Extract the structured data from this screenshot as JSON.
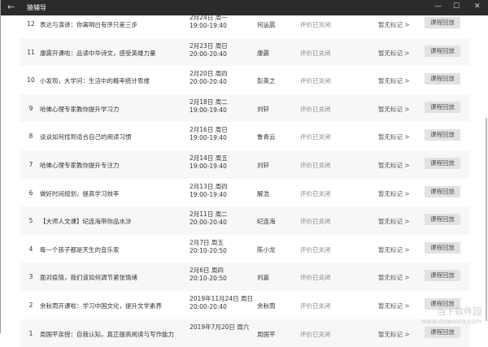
{
  "window": {
    "title": "猿辅导",
    "back_icon": "arrow-left-icon",
    "minimize": "—",
    "maximize": "☐",
    "close": "✕"
  },
  "lessons": [
    {
      "num": "12",
      "title": "表达与演讲：你离明白有序只差三步",
      "date": "2月24日 周一",
      "time": "19:00-19:40",
      "teacher": "何运晨",
      "status": "评价已关闭",
      "mark": "暂无标记 >",
      "button": "课程回放"
    },
    {
      "num": "11",
      "title": "康震开课啦：品读中华诗文，感受英雄力量",
      "date": "2月23日 周日",
      "time": "20:00-20:40",
      "teacher": "康震",
      "status": "评价已关闭",
      "mark": "暂无标记 >",
      "button": "课程回放"
    },
    {
      "num": "10",
      "title": "小发现，大学问：生活中的概率统计思维",
      "date": "2月20日 周四",
      "time": "20:00-20:40",
      "teacher": "彭英之",
      "status": "评价已关闭",
      "mark": "暂无标记 >",
      "button": "课程回放"
    },
    {
      "num": "9",
      "title": "哈佛心理专家教你提升学习力",
      "date": "2月18日 周二",
      "time": "19:00-19:40",
      "teacher": "刘轩",
      "status": "评价已关闭",
      "mark": "暂无标记 >",
      "button": "课程回放"
    },
    {
      "num": "8",
      "title": "谈谈如何找到适合自己的阅读习惯",
      "date": "2月16日 周日",
      "time": "19:00-19:40",
      "teacher": "鲁青云",
      "status": "评价已关闭",
      "mark": "暂无标记 >",
      "button": "课程回放"
    },
    {
      "num": "7",
      "title": "哈佛心理专家教你提升专注力",
      "date": "2月14日 周五",
      "time": "19:00-19:40",
      "teacher": "刘轩",
      "status": "评价已关闭",
      "mark": "暂无标记 >",
      "button": "课程回放"
    },
    {
      "num": "6",
      "title": "做好时间规划，提高学习效率",
      "date": "2月13日 周四",
      "time": "19:00-19:40",
      "teacher": "解浩",
      "status": "评价已关闭",
      "mark": "暂无标记 >",
      "button": "课程回放"
    },
    {
      "num": "5",
      "title": "【大师人文课】纪连海带你品水浒",
      "date": "2月11日 周二",
      "time": "20:00-20:40",
      "teacher": "纪连海",
      "status": "评价已关闭",
      "mark": "暂无标记 >",
      "button": "课程回放"
    },
    {
      "num": "4",
      "title": "每一个孩子都是天生的音乐家",
      "date": "2月7日 周五",
      "time": "20:10-20:50",
      "teacher": "陈小龙",
      "status": "评价已关闭",
      "mark": "暂无标记 >",
      "button": "课程回放"
    },
    {
      "num": "3",
      "title": "面对疫情，我们该如何调节紧张情绪",
      "date": "2月6日 周四",
      "time": "20:10-20:50",
      "teacher": "刘嘉",
      "status": "评价已关闭",
      "mark": "暂无标记 >",
      "button": "课程回放"
    },
    {
      "num": "2",
      "title": "余秋雨开课啦：学习中国文化，提升文学素养",
      "date": "2019年11月24日 周日",
      "time": "20:00-20:40",
      "teacher": "余秋雨",
      "status": "评价已关闭",
      "mark": "暂无标记 >",
      "button": "课程回放"
    },
    {
      "num": "1",
      "title": "周国平亲授：自我认知，真正提高阅读与写作能力",
      "date": "2019年7月20日 周六",
      "time": "",
      "teacher": "周国平",
      "status": "评价已关闭",
      "mark": "暂无标记 >",
      "button": "课程回放"
    }
  ],
  "watermark": {
    "name": "当下软件园",
    "url": "www.downxia.com"
  }
}
